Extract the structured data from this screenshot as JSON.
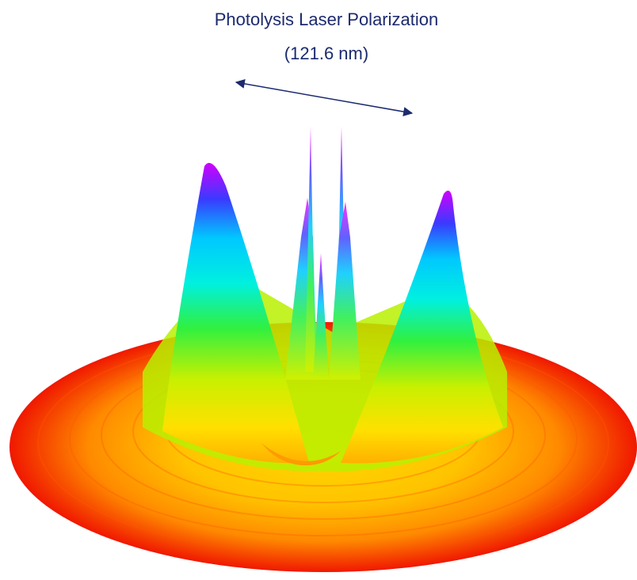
{
  "figure": {
    "title": "Photolysis Laser Polarization",
    "subtitle": "(121.6 nm)"
  }
}
